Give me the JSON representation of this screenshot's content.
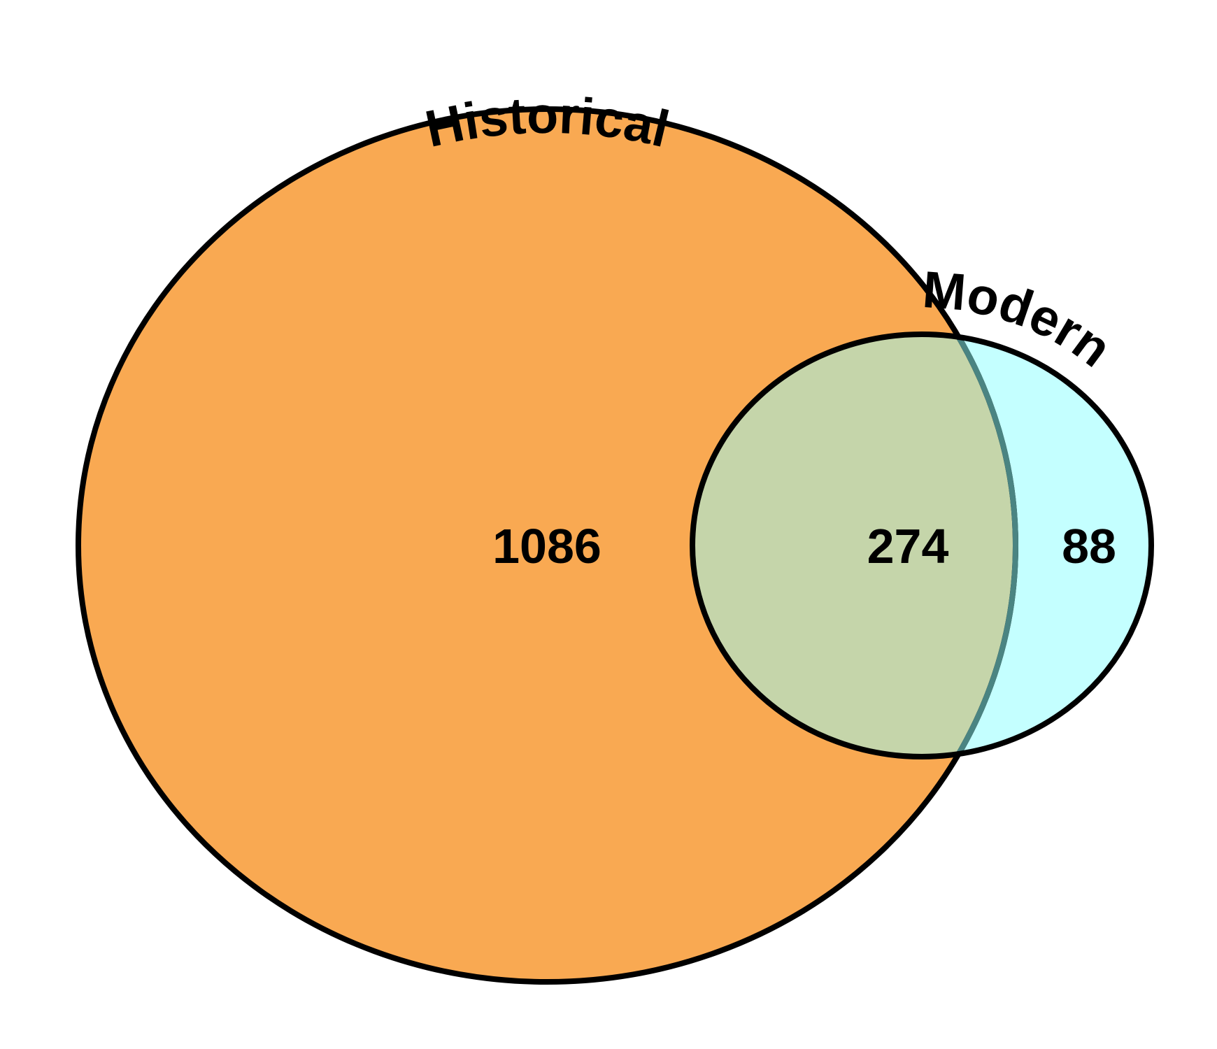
{
  "venn": {
    "sets": [
      {
        "key": "historical",
        "label": "Historical",
        "fill": "#f9a952"
      },
      {
        "key": "modern",
        "label": "Modern",
        "fill": "#c4ffff"
      }
    ],
    "overlap_fill": "#c5d5aa",
    "outline_color": "#000000",
    "counts": {
      "historical_only": "1086",
      "both": "274",
      "modern_only": "88"
    }
  }
}
